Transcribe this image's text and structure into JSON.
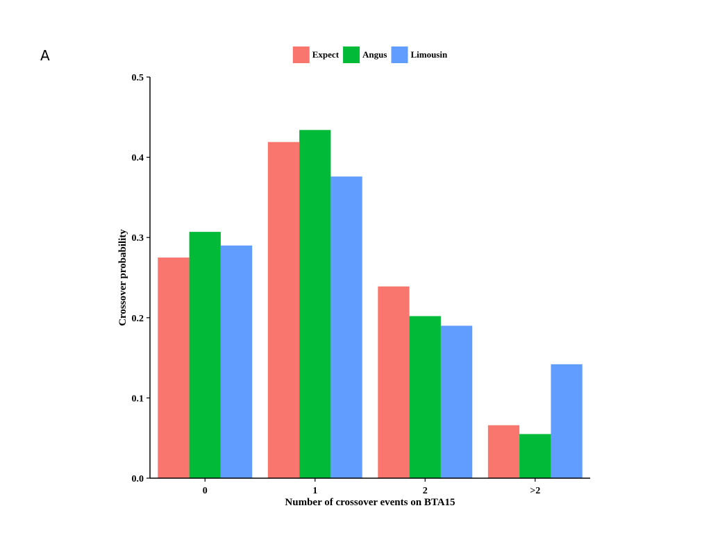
{
  "panel_label": "A",
  "chart_data": {
    "type": "bar",
    "title": "",
    "xlabel": "Number of crossover events on BTA15",
    "ylabel": "Crossover probability",
    "categories": [
      "0",
      "1",
      "2",
      ">2"
    ],
    "series": [
      {
        "name": "Expect",
        "color": "#f8766d",
        "values": [
          0.275,
          0.419,
          0.239,
          0.066
        ]
      },
      {
        "name": "Angus",
        "color": "#00ba38",
        "values": [
          0.307,
          0.434,
          0.202,
          0.055
        ]
      },
      {
        "name": "Limousin",
        "color": "#619cff",
        "values": [
          0.29,
          0.376,
          0.19,
          0.142
        ]
      }
    ],
    "ylim": [
      0,
      0.5
    ],
    "yticks": [
      "0.0",
      "0.1",
      "0.2",
      "0.3",
      "0.4",
      "0.5"
    ],
    "grid": false,
    "legend_position": "top"
  }
}
